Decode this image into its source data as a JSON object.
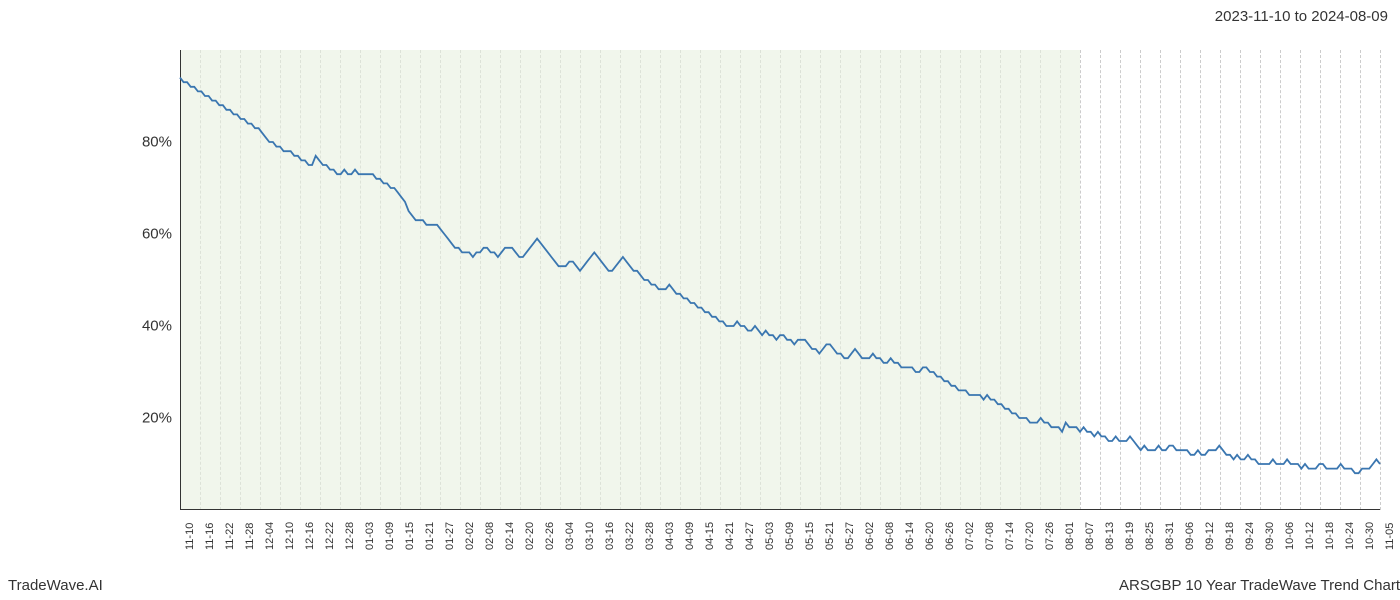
{
  "header": {
    "date_range": "2023-11-10 to 2024-08-09"
  },
  "footer": {
    "left": "TradeWave.AI",
    "right": "ARSGBP 10 Year TradeWave Trend Chart"
  },
  "chart": {
    "type": "line",
    "background_color": "#ffffff",
    "shaded_background_color": "#e8f0e0",
    "grid_color": "#cccccc",
    "axis_color": "#333333",
    "line_color": "#3a76b0",
    "line_width": 1.8,
    "label_fontsize": 15,
    "xlabel_fontsize": 11,
    "ylim": [
      0,
      100
    ],
    "yticks": [
      {
        "value": 20,
        "label": "20%"
      },
      {
        "value": 40,
        "label": "40%"
      },
      {
        "value": 60,
        "label": "60%"
      },
      {
        "value": 80,
        "label": "80%"
      }
    ],
    "xticks": [
      "11-10",
      "11-16",
      "11-22",
      "11-28",
      "12-04",
      "12-10",
      "12-16",
      "12-22",
      "12-28",
      "01-03",
      "01-09",
      "01-15",
      "01-21",
      "01-27",
      "02-02",
      "02-08",
      "02-14",
      "02-20",
      "02-26",
      "03-04",
      "03-10",
      "03-16",
      "03-22",
      "03-28",
      "04-03",
      "04-09",
      "04-15",
      "04-21",
      "04-27",
      "05-03",
      "05-09",
      "05-15",
      "05-21",
      "05-27",
      "06-02",
      "06-08",
      "06-14",
      "06-20",
      "06-26",
      "07-02",
      "07-08",
      "07-14",
      "07-20",
      "07-26",
      "08-01",
      "08-07",
      "08-13",
      "08-19",
      "08-25",
      "08-31",
      "09-06",
      "09-12",
      "09-18",
      "09-24",
      "09-30",
      "10-06",
      "10-12",
      "10-18",
      "10-24",
      "10-30",
      "11-05"
    ],
    "shaded_region": {
      "start_index": 0,
      "end_index": 45
    },
    "series": [
      94,
      93,
      93,
      92,
      92,
      91,
      91,
      90,
      90,
      89,
      89,
      88,
      88,
      87,
      87,
      86,
      86,
      85,
      85,
      84,
      84,
      83,
      83,
      82,
      81,
      80,
      80,
      79,
      79,
      78,
      78,
      78,
      77,
      77,
      76,
      76,
      75,
      75,
      77,
      76,
      75,
      75,
      74,
      74,
      73,
      73,
      74,
      73,
      73,
      74,
      73,
      73,
      73,
      73,
      73,
      72,
      72,
      71,
      71,
      70,
      70,
      69,
      68,
      67,
      65,
      64,
      63,
      63,
      63,
      62,
      62,
      62,
      62,
      61,
      60,
      59,
      58,
      57,
      57,
      56,
      56,
      56,
      55,
      56,
      56,
      57,
      57,
      56,
      56,
      55,
      56,
      57,
      57,
      57,
      56,
      55,
      55,
      56,
      57,
      58,
      59,
      58,
      57,
      56,
      55,
      54,
      53,
      53,
      53,
      54,
      54,
      53,
      52,
      53,
      54,
      55,
      56,
      55,
      54,
      53,
      52,
      52,
      53,
      54,
      55,
      54,
      53,
      52,
      52,
      51,
      50,
      50,
      49,
      49,
      48,
      48,
      48,
      49,
      48,
      47,
      47,
      46,
      46,
      45,
      45,
      44,
      44,
      43,
      43,
      42,
      42,
      41,
      41,
      40,
      40,
      40,
      41,
      40,
      40,
      39,
      39,
      40,
      39,
      38,
      39,
      38,
      38,
      37,
      38,
      38,
      37,
      37,
      36,
      37,
      37,
      37,
      36,
      35,
      35,
      34,
      35,
      36,
      36,
      35,
      34,
      34,
      33,
      33,
      34,
      35,
      34,
      33,
      33,
      33,
      34,
      33,
      33,
      32,
      32,
      33,
      32,
      32,
      31,
      31,
      31,
      31,
      30,
      30,
      31,
      31,
      30,
      30,
      29,
      29,
      28,
      28,
      27,
      27,
      26,
      26,
      26,
      25,
      25,
      25,
      25,
      24,
      25,
      24,
      24,
      23,
      23,
      22,
      22,
      21,
      21,
      20,
      20,
      20,
      19,
      19,
      19,
      20,
      19,
      19,
      18,
      18,
      18,
      17,
      19,
      18,
      18,
      18,
      17,
      18,
      17,
      17,
      16,
      17,
      16,
      16,
      15,
      15,
      16,
      15,
      15,
      15,
      16,
      15,
      14,
      13,
      14,
      13,
      13,
      13,
      14,
      13,
      13,
      14,
      14,
      13,
      13,
      13,
      13,
      12,
      12,
      13,
      12,
      12,
      13,
      13,
      13,
      14,
      13,
      12,
      12,
      11,
      12,
      11,
      11,
      12,
      11,
      11,
      10,
      10,
      10,
      10,
      11,
      10,
      10,
      10,
      11,
      10,
      10,
      10,
      9,
      10,
      9,
      9,
      9,
      10,
      10,
      9,
      9,
      9,
      9,
      10,
      9,
      9,
      9,
      8,
      8,
      9,
      9,
      9,
      10,
      11,
      10
    ]
  }
}
